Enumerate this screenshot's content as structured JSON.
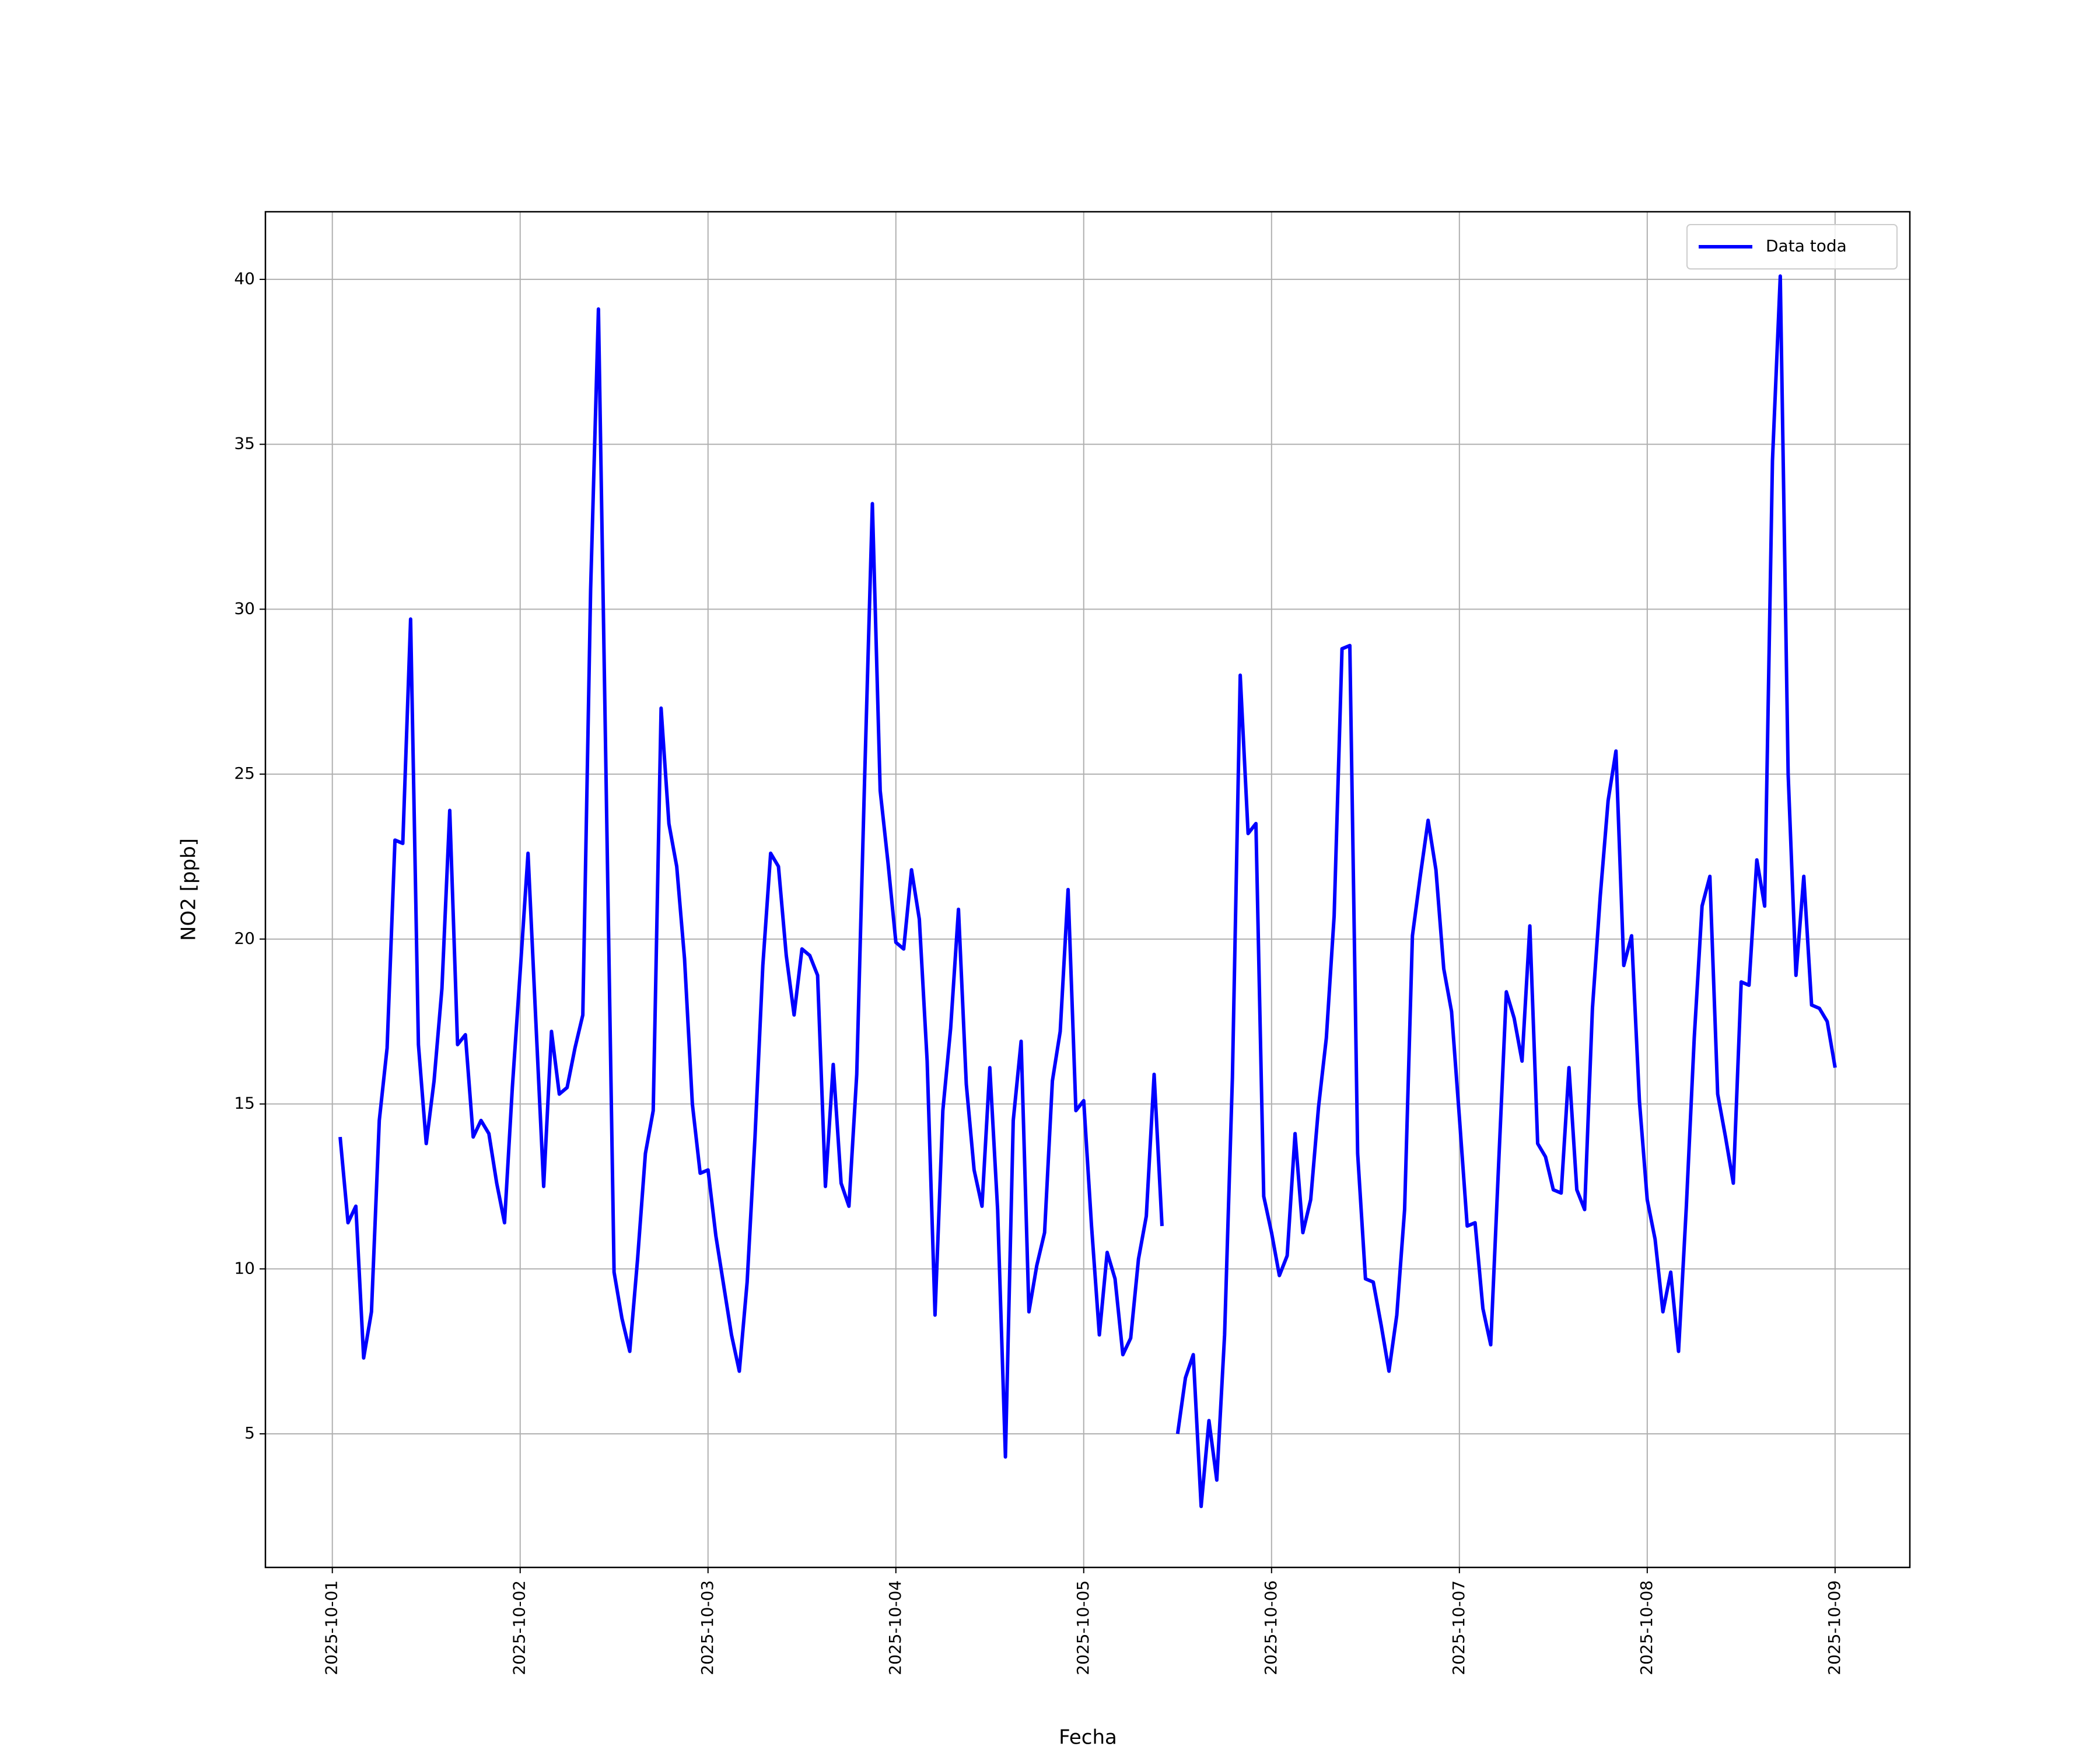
{
  "chart_data": {
    "type": "line",
    "xlabel": "Fecha",
    "ylabel": "NO2 [ppb]",
    "x": [
      "2025-10-01T01:00",
      "2025-10-01T02:00",
      "2025-10-01T03:00",
      "2025-10-01T04:00",
      "2025-10-01T05:00",
      "2025-10-01T06:00",
      "2025-10-01T07:00",
      "2025-10-01T08:00",
      "2025-10-01T09:00",
      "2025-10-01T10:00",
      "2025-10-01T11:00",
      "2025-10-01T12:00",
      "2025-10-01T13:00",
      "2025-10-01T14:00",
      "2025-10-01T15:00",
      "2025-10-01T16:00",
      "2025-10-01T17:00",
      "2025-10-01T18:00",
      "2025-10-01T19:00",
      "2025-10-01T20:00",
      "2025-10-01T21:00",
      "2025-10-01T22:00",
      "2025-10-01T23:00",
      "2025-10-02T00:00",
      "2025-10-02T01:00",
      "2025-10-02T02:00",
      "2025-10-02T03:00",
      "2025-10-02T04:00",
      "2025-10-02T05:00",
      "2025-10-02T06:00",
      "2025-10-02T07:00",
      "2025-10-02T08:00",
      "2025-10-02T09:00",
      "2025-10-02T10:00",
      "2025-10-02T11:00",
      "2025-10-02T12:00",
      "2025-10-02T13:00",
      "2025-10-02T14:00",
      "2025-10-02T15:00",
      "2025-10-02T16:00",
      "2025-10-02T17:00",
      "2025-10-02T18:00",
      "2025-10-02T19:00",
      "2025-10-02T20:00",
      "2025-10-02T21:00",
      "2025-10-02T22:00",
      "2025-10-02T23:00",
      "2025-10-03T00:00",
      "2025-10-03T01:00",
      "2025-10-03T02:00",
      "2025-10-03T03:00",
      "2025-10-03T04:00",
      "2025-10-03T05:00",
      "2025-10-03T06:00",
      "2025-10-03T07:00",
      "2025-10-03T08:00",
      "2025-10-03T09:00",
      "2025-10-03T10:00",
      "2025-10-03T11:00",
      "2025-10-03T12:00",
      "2025-10-03T13:00",
      "2025-10-03T14:00",
      "2025-10-03T15:00",
      "2025-10-03T16:00",
      "2025-10-03T17:00",
      "2025-10-03T18:00",
      "2025-10-03T19:00",
      "2025-10-03T20:00",
      "2025-10-03T21:00",
      "2025-10-03T22:00",
      "2025-10-03T23:00",
      "2025-10-04T00:00",
      "2025-10-04T01:00",
      "2025-10-04T02:00",
      "2025-10-04T03:00",
      "2025-10-04T04:00",
      "2025-10-04T05:00",
      "2025-10-04T06:00",
      "2025-10-04T07:00",
      "2025-10-04T08:00",
      "2025-10-04T09:00",
      "2025-10-04T10:00",
      "2025-10-04T11:00",
      "2025-10-04T12:00",
      "2025-10-04T13:00",
      "2025-10-04T14:00",
      "2025-10-04T15:00",
      "2025-10-04T16:00",
      "2025-10-04T17:00",
      "2025-10-04T18:00",
      "2025-10-04T19:00",
      "2025-10-04T20:00",
      "2025-10-04T21:00",
      "2025-10-04T22:00",
      "2025-10-04T23:00",
      "2025-10-05T00:00",
      "2025-10-05T01:00",
      "2025-10-05T02:00",
      "2025-10-05T03:00",
      "2025-10-05T04:00",
      "2025-10-05T05:00",
      "2025-10-05T06:00",
      "2025-10-05T07:00",
      "2025-10-05T08:00",
      "2025-10-05T09:00",
      "2025-10-05T10:00",
      "2025-10-05T11:00",
      "2025-10-05T12:00",
      "2025-10-05T13:00",
      "2025-10-05T14:00",
      "2025-10-05T15:00",
      "2025-10-05T16:00",
      "2025-10-05T17:00",
      "2025-10-05T18:00",
      "2025-10-05T19:00",
      "2025-10-05T20:00",
      "2025-10-05T21:00",
      "2025-10-05T22:00",
      "2025-10-05T23:00",
      "2025-10-06T00:00",
      "2025-10-06T01:00",
      "2025-10-06T02:00",
      "2025-10-06T03:00",
      "2025-10-06T04:00",
      "2025-10-06T05:00",
      "2025-10-06T06:00",
      "2025-10-06T07:00",
      "2025-10-06T08:00",
      "2025-10-06T09:00",
      "2025-10-06T10:00",
      "2025-10-06T11:00",
      "2025-10-06T12:00",
      "2025-10-06T13:00",
      "2025-10-06T14:00",
      "2025-10-06T15:00",
      "2025-10-06T16:00",
      "2025-10-06T17:00",
      "2025-10-06T18:00",
      "2025-10-06T19:00",
      "2025-10-06T20:00",
      "2025-10-06T21:00",
      "2025-10-06T22:00",
      "2025-10-06T23:00",
      "2025-10-07T00:00",
      "2025-10-07T01:00",
      "2025-10-07T02:00",
      "2025-10-07T03:00",
      "2025-10-07T04:00",
      "2025-10-07T05:00",
      "2025-10-07T06:00",
      "2025-10-07T07:00",
      "2025-10-07T08:00",
      "2025-10-07T09:00",
      "2025-10-07T10:00",
      "2025-10-07T11:00",
      "2025-10-07T12:00",
      "2025-10-07T13:00",
      "2025-10-07T14:00",
      "2025-10-07T15:00",
      "2025-10-07T16:00",
      "2025-10-07T17:00",
      "2025-10-07T18:00",
      "2025-10-07T19:00",
      "2025-10-07T20:00",
      "2025-10-07T21:00",
      "2025-10-07T22:00",
      "2025-10-07T23:00",
      "2025-10-08T00:00",
      "2025-10-08T01:00",
      "2025-10-08T02:00",
      "2025-10-08T03:00",
      "2025-10-08T04:00",
      "2025-10-08T05:00",
      "2025-10-08T06:00",
      "2025-10-08T07:00",
      "2025-10-08T08:00",
      "2025-10-08T09:00",
      "2025-10-08T10:00",
      "2025-10-08T11:00",
      "2025-10-08T12:00",
      "2025-10-08T13:00",
      "2025-10-08T14:00",
      "2025-10-08T15:00",
      "2025-10-08T16:00",
      "2025-10-08T17:00",
      "2025-10-08T18:00",
      "2025-10-08T19:00",
      "2025-10-08T20:00",
      "2025-10-08T21:00",
      "2025-10-08T22:00",
      "2025-10-08T23:00",
      "2025-10-09T00:00"
    ],
    "series": [
      {
        "name": "Data toda",
        "color": "#0000ff",
        "values": [
          14.0,
          11.4,
          11.9,
          7.3,
          8.7,
          14.5,
          16.7,
          23.0,
          22.9,
          29.7,
          16.8,
          13.8,
          15.7,
          18.5,
          23.9,
          16.8,
          17.1,
          14.0,
          14.5,
          14.1,
          12.6,
          11.4,
          15.5,
          19.0,
          22.6,
          17.5,
          12.5,
          17.2,
          15.3,
          15.5,
          16.7,
          17.7,
          30.6,
          39.1,
          24.5,
          9.9,
          8.5,
          7.5,
          10.3,
          13.5,
          14.8,
          27.0,
          23.5,
          22.2,
          19.4,
          15.0,
          12.9,
          13.0,
          11.0,
          9.5,
          8.0,
          6.9,
          9.6,
          14.0,
          19.2,
          22.6,
          22.2,
          19.5,
          17.7,
          19.7,
          19.5,
          18.9,
          12.5,
          16.2,
          12.6,
          11.9,
          15.9,
          24.8,
          33.2,
          24.5,
          22.3,
          19.9,
          19.7,
          22.1,
          20.6,
          16.3,
          8.6,
          14.8,
          17.3,
          20.9,
          15.6,
          13.0,
          11.9,
          16.1,
          11.8,
          4.3,
          14.5,
          16.9,
          8.7,
          10.1,
          11.1,
          15.7,
          17.2,
          21.5,
          14.8,
          15.1,
          11.3,
          8.0,
          10.5,
          9.7,
          7.4,
          7.9,
          10.3,
          11.6,
          15.9,
          11.3,
          null,
          5.0,
          6.7,
          7.4,
          2.8,
          5.4,
          3.6,
          8.0,
          15.8,
          28.0,
          23.2,
          23.5,
          12.2,
          11.1,
          9.8,
          10.4,
          14.1,
          11.1,
          12.1,
          14.9,
          17.0,
          20.7,
          28.8,
          28.9,
          13.5,
          9.7,
          9.6,
          8.3,
          6.9,
          8.6,
          11.8,
          20.1,
          21.9,
          23.6,
          22.1,
          19.1,
          17.8,
          14.6,
          11.3,
          11.4,
          8.8,
          7.7,
          13.1,
          18.4,
          17.6,
          16.3,
          20.4,
          13.8,
          13.4,
          12.4,
          12.3,
          16.1,
          12.4,
          11.8,
          17.9,
          21.3,
          24.2,
          25.7,
          19.2,
          20.1,
          15.1,
          12.1,
          10.9,
          8.7,
          9.9,
          7.5,
          11.9,
          17.0,
          21.0,
          21.9,
          15.3,
          14.0,
          12.6,
          18.7,
          18.6,
          22.4,
          21.0,
          34.5,
          40.1,
          25.0,
          18.9,
          21.9,
          18.0,
          17.9,
          17.5,
          16.1
        ]
      }
    ],
    "xlim": [
      "2025-09-30T15:27",
      "2025-10-09T09:33"
    ],
    "xticks": [
      "2025-10-01",
      "2025-10-02",
      "2025-10-03",
      "2025-10-04",
      "2025-10-05",
      "2025-10-06",
      "2025-10-07",
      "2025-10-08",
      "2025-10-09"
    ],
    "ylim": [
      0.95,
      42.05
    ],
    "yticks": [
      5,
      10,
      15,
      20,
      25,
      30,
      35,
      40
    ],
    "grid": true,
    "legend": "upper right"
  }
}
